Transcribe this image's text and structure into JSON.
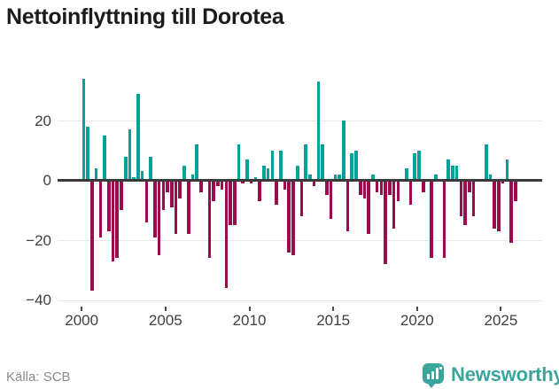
{
  "title": "Nettoinflyttning till Dorotea",
  "source_note": "Källa: SCB",
  "logo": {
    "wordmark": "Newsworthy",
    "badge_icon": "bar-chart-exclamation-icon",
    "brand_color": "#3aa59c"
  },
  "chart_data": {
    "type": "bar",
    "title": "Nettoinflyttning till Dorotea",
    "frequency": "quarterly",
    "start": "2000 Q1",
    "end": "2025 Q4",
    "series": [
      {
        "name": "Nettoinflyttning",
        "values": [
          34,
          18,
          -37,
          4,
          -19,
          15,
          -17,
          -27,
          -26,
          -10,
          8,
          17,
          1,
          29,
          3,
          -14,
          8,
          -19,
          -25,
          -10,
          -4,
          -9,
          -18,
          -6,
          5,
          -18,
          2,
          12,
          -4,
          0,
          -26,
          -7,
          -2,
          -3,
          -36,
          -15,
          -15,
          12,
          -1,
          7,
          -1,
          1,
          -7,
          5,
          4,
          10,
          -8,
          10,
          -3,
          -24,
          -25,
          5,
          -12,
          12,
          2,
          -2,
          33,
          12,
          -5,
          -13,
          2,
          2,
          20,
          -17,
          9,
          10,
          -5,
          -6,
          -18,
          2,
          -4,
          -5,
          -28,
          -5,
          -16,
          -7,
          0,
          4,
          -8,
          9,
          10,
          -4,
          0,
          -26,
          2,
          0,
          -26,
          7,
          5,
          5,
          -12,
          -15,
          -4,
          -12,
          0,
          0,
          12,
          2,
          -16,
          -17,
          -1,
          7,
          -21,
          -7
        ]
      }
    ],
    "x_tick_labels": [
      "2000",
      "2005",
      "2010",
      "2015",
      "2020",
      "2025"
    ],
    "x_tick_years": [
      2000,
      2005,
      2010,
      2015,
      2020,
      2025
    ],
    "y_ticks": [
      20,
      0,
      -20,
      -40
    ],
    "y_tick_labels": [
      "20",
      "0",
      "−20",
      "−40"
    ],
    "ylim": [
      -42,
      38
    ],
    "grid": true,
    "legend": "none",
    "colors": {
      "positive": "#00a29a",
      "negative": "#9c0b4e",
      "zero_axis": "#3a3a3a",
      "gridline": "#e6e6e6"
    }
  }
}
